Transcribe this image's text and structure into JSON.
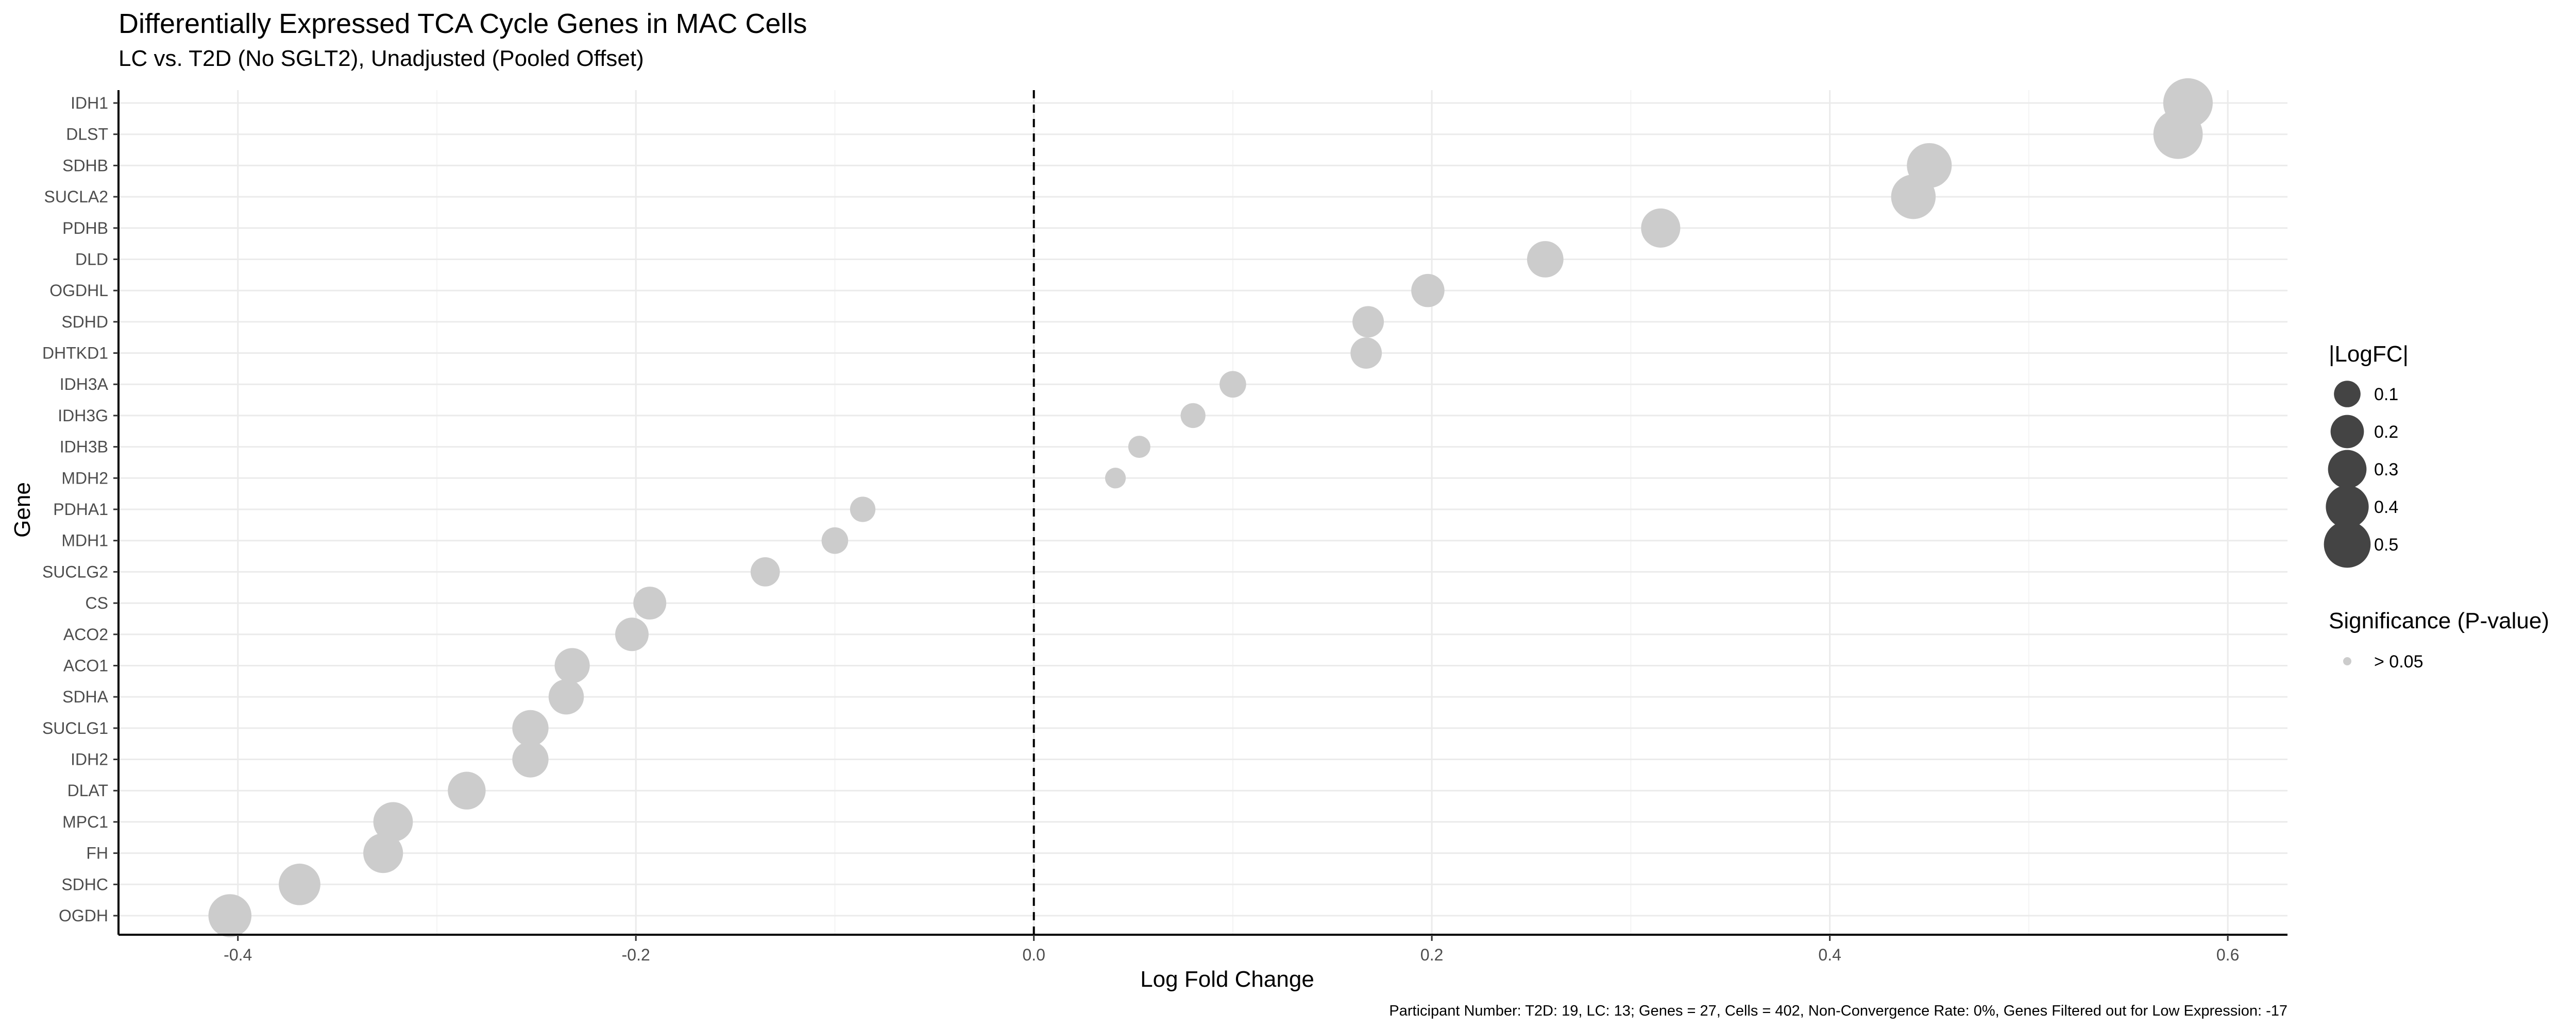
{
  "chart_data": {
    "type": "scatter",
    "title": "Differentially Expressed TCA Cycle Genes in MAC Cells",
    "subtitle": "LC vs. T2D (No SGLT2), Unadjusted (Pooled Offset)",
    "xlabel": "Log Fold Change",
    "ylabel": "Gene",
    "xlim": [
      -0.46,
      0.63
    ],
    "x_ticks": [
      -0.4,
      -0.2,
      0.0,
      0.2,
      0.4,
      0.6
    ],
    "x_tick_labels": [
      "-0.4",
      "-0.2",
      "0.0",
      "0.2",
      "0.4",
      "0.6"
    ],
    "reference_line": {
      "x": 0,
      "style": "dashed"
    },
    "grid": true,
    "point_color": "#cccccc",
    "points": [
      {
        "gene": "IDH1",
        "logfc": 0.58
      },
      {
        "gene": "DLST",
        "logfc": 0.575
      },
      {
        "gene": "SDHB",
        "logfc": 0.45
      },
      {
        "gene": "SUCLA2",
        "logfc": 0.442
      },
      {
        "gene": "PDHB",
        "logfc": 0.315
      },
      {
        "gene": "DLD",
        "logfc": 0.257
      },
      {
        "gene": "OGDHL",
        "logfc": 0.198
      },
      {
        "gene": "SDHD",
        "logfc": 0.168
      },
      {
        "gene": "DHTKD1",
        "logfc": 0.167
      },
      {
        "gene": "IDH3A",
        "logfc": 0.1
      },
      {
        "gene": "IDH3G",
        "logfc": 0.08
      },
      {
        "gene": "IDH3B",
        "logfc": 0.053
      },
      {
        "gene": "MDH2",
        "logfc": 0.041
      },
      {
        "gene": "PDHA1",
        "logfc": -0.086
      },
      {
        "gene": "MDH1",
        "logfc": -0.1
      },
      {
        "gene": "SUCLG2",
        "logfc": -0.135
      },
      {
        "gene": "CS",
        "logfc": -0.193
      },
      {
        "gene": "ACO2",
        "logfc": -0.202
      },
      {
        "gene": "ACO1",
        "logfc": -0.232
      },
      {
        "gene": "SDHA",
        "logfc": -0.235
      },
      {
        "gene": "SUCLG1",
        "logfc": -0.253
      },
      {
        "gene": "IDH2",
        "logfc": -0.253
      },
      {
        "gene": "DLAT",
        "logfc": -0.285
      },
      {
        "gene": "MPC1",
        "logfc": -0.322
      },
      {
        "gene": "FH",
        "logfc": -0.327
      },
      {
        "gene": "SDHC",
        "logfc": -0.369
      },
      {
        "gene": "OGDH",
        "logfc": -0.404
      }
    ],
    "legend_size": {
      "title": "|LogFC|",
      "color": "#444444",
      "entries": [
        {
          "label": "0.1",
          "value": 0.1
        },
        {
          "label": "0.2",
          "value": 0.2
        },
        {
          "label": "0.3",
          "value": 0.3
        },
        {
          "label": "0.4",
          "value": 0.4
        },
        {
          "label": "0.5",
          "value": 0.5
        }
      ]
    },
    "legend_significance": {
      "title": "Significance (P-value)",
      "entries": [
        {
          "label": "> 0.05",
          "color": "#cccccc"
        }
      ]
    },
    "legend_position": "right",
    "caption": "Participant Number: T2D: 19, LC: 13; Genes = 27, Cells = 402, Non-Convergence Rate: 0%, Genes Filtered out for Low Expression: -17"
  }
}
